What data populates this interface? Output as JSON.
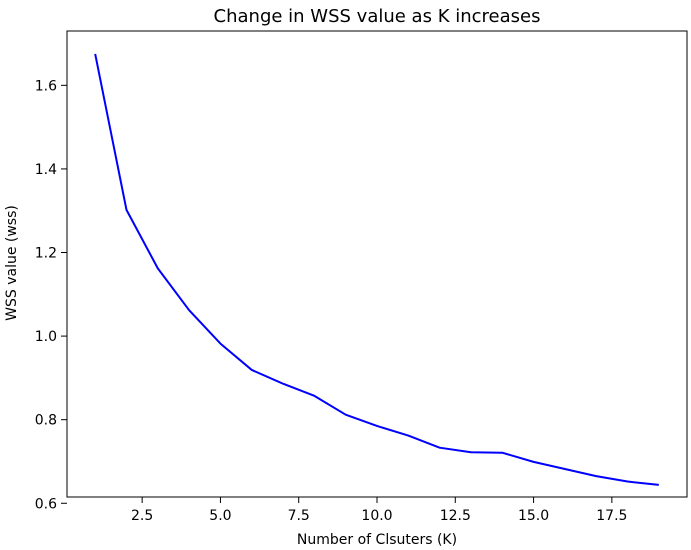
{
  "chart_data": {
    "type": "line",
    "title": "Change in WSS value as K increases",
    "xlabel": "Number of Clsuters (K)",
    "ylabel": "WSS value (wss)",
    "xlim": [
      0.1,
      19.9
    ],
    "ylim": [
      0.615,
      1.73
    ],
    "grid": false,
    "legend": "none",
    "x_ticks": [
      2.5,
      5.0,
      7.5,
      10.0,
      12.5,
      15.0,
      17.5
    ],
    "x_tick_labels": [
      "2.5",
      "5.0",
      "7.5",
      "10.0",
      "12.5",
      "15.0",
      "17.5"
    ],
    "y_ticks": [
      0.6,
      0.8,
      1.0,
      1.2,
      1.4,
      1.6
    ],
    "y_tick_labels": [
      "0.6",
      "0.8",
      "1.0",
      "1.2",
      "1.4",
      "1.6"
    ],
    "series": [
      {
        "color": "#0000ff",
        "x": [
          1,
          2,
          3,
          4,
          5,
          6,
          7,
          8,
          9,
          10,
          11,
          12,
          13,
          14,
          15,
          16,
          17,
          18,
          19
        ],
        "values": [
          1.675,
          1.302,
          1.162,
          1.062,
          0.982,
          0.919,
          0.886,
          0.857,
          0.812,
          0.785,
          0.762,
          0.733,
          0.722,
          0.721,
          0.699,
          0.682,
          0.665,
          0.652,
          0.644
        ]
      }
    ]
  }
}
